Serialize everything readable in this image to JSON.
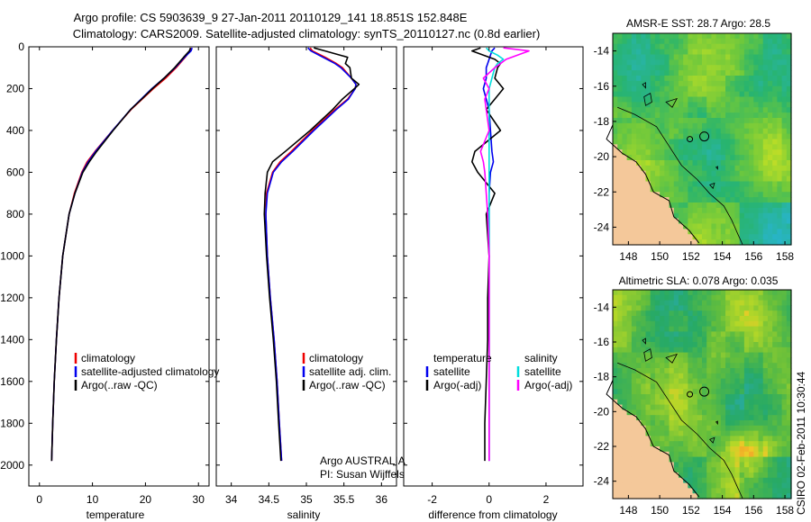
{
  "header": {
    "title_line1": "Argo profile: CS 5903639_9 27-Jan-2011 20110129_141 18.851S 152.848E",
    "title_line2": "Climatology: CARS2009. Satellite-adjusted climatology: synTS_20110127.nc (0.8d earlier)"
  },
  "colors": {
    "climatology": "#ee0000",
    "satellite": "#0000ee",
    "argo": "#000000",
    "diff_temperature": "#000000",
    "diff_salinity": "#ff00ff",
    "sat_salinity": "#00dddd"
  },
  "chart_data": [
    {
      "type": "line",
      "name": "temperature",
      "xlabel": "temperature",
      "xlim": [
        -2,
        32
      ],
      "ylim": [
        2100,
        0
      ],
      "xticks": [
        0,
        10,
        20,
        30
      ],
      "yticks": [
        0,
        200,
        400,
        600,
        800,
        1000,
        1200,
        1400,
        1600,
        1800,
        2000
      ],
      "legend": [
        "climatology",
        "satellite-adjusted climatology",
        "Argo(..raw -QC)"
      ],
      "depth": [
        5,
        20,
        50,
        100,
        150,
        200,
        250,
        300,
        400,
        500,
        550,
        600,
        700,
        800,
        1000,
        1200,
        1400,
        1600,
        1800,
        1980
      ],
      "series": [
        {
          "name": "climatology",
          "values": [
            28.6,
            28.4,
            27.5,
            25.8,
            23.8,
            21.5,
            19.4,
            17.3,
            13.8,
            10.5,
            9.0,
            8.0,
            6.6,
            5.6,
            4.4,
            3.7,
            3.2,
            2.8,
            2.5,
            2.3
          ]
        },
        {
          "name": "satellite-adjusted climatology",
          "values": [
            28.8,
            28.6,
            27.4,
            25.6,
            23.5,
            21.2,
            19.2,
            17.2,
            13.8,
            10.6,
            9.2,
            8.1,
            6.7,
            5.6,
            4.4,
            3.7,
            3.2,
            2.8,
            2.5,
            2.3
          ]
        },
        {
          "name": "Argo(..raw -QC)",
          "values": [
            28.5,
            28.3,
            27.2,
            25.5,
            23.5,
            21.3,
            19.3,
            17.2,
            13.9,
            10.8,
            9.4,
            8.2,
            6.7,
            5.6,
            4.4,
            3.7,
            3.2,
            2.8,
            2.5,
            2.3
          ]
        }
      ]
    },
    {
      "type": "line",
      "name": "salinity",
      "xlabel": "salinity",
      "xlim": [
        33.8,
        36.2
      ],
      "ylim": [
        2100,
        0
      ],
      "xticks": [
        34,
        34.5,
        35,
        35.5,
        36
      ],
      "legend": [
        "climatology",
        "satellite adj. clim.",
        "Argo(..raw -QC)"
      ],
      "depth": [
        5,
        20,
        50,
        80,
        100,
        150,
        180,
        200,
        250,
        300,
        400,
        500,
        550,
        600,
        700,
        800,
        1000,
        1200,
        1400,
        1600,
        1800,
        1980
      ],
      "series": [
        {
          "name": "climatology",
          "values": [
            35.05,
            35.08,
            35.25,
            35.4,
            35.48,
            35.6,
            35.66,
            35.65,
            35.55,
            35.38,
            35.08,
            34.8,
            34.65,
            34.55,
            34.47,
            34.46,
            34.48,
            34.52,
            34.57,
            34.61,
            34.64,
            34.67
          ]
        },
        {
          "name": "satellite adj. clim.",
          "values": [
            35.02,
            35.06,
            35.22,
            35.38,
            35.46,
            35.6,
            35.66,
            35.65,
            35.56,
            35.4,
            35.1,
            34.82,
            34.67,
            34.56,
            34.48,
            34.46,
            34.48,
            34.52,
            34.57,
            34.61,
            34.64,
            34.67
          ]
        },
        {
          "name": "Argo(..raw -QC)",
          "values": [
            35.1,
            35.25,
            35.55,
            35.52,
            35.58,
            35.6,
            35.7,
            35.64,
            35.48,
            35.35,
            35.05,
            34.72,
            34.55,
            34.48,
            34.45,
            34.44,
            34.47,
            34.51,
            34.56,
            34.6,
            34.63,
            34.66
          ]
        }
      ]
    },
    {
      "type": "line",
      "name": "difference from climatology",
      "xlabel": "difference from climatology",
      "xlim": [
        -3,
        3.3
      ],
      "ylim": [
        2100,
        0
      ],
      "xticks": [
        -2,
        0,
        2
      ],
      "legend_temperature_title": "temperature",
      "legend_temperature": [
        "satellite",
        "Argo(-adj)"
      ],
      "legend_salinity_title": "salinity",
      "legend_salinity": [
        "satellite",
        "Argo(-adj)"
      ],
      "depth": [
        5,
        20,
        40,
        60,
        80,
        100,
        150,
        200,
        250,
        300,
        400,
        500,
        550,
        600,
        700,
        800,
        1000,
        1200,
        1400,
        1600,
        1800,
        1980
      ],
      "series": [
        {
          "name": "temperature satellite",
          "values": [
            0.2,
            0.1,
            0.05,
            0.0,
            -0.05,
            -0.1,
            -0.1,
            -0.2,
            -0.1,
            0.0,
            0.05,
            0.1,
            0.15,
            0.05,
            0.0,
            0.0,
            0.0,
            0.0,
            0.0,
            0.0,
            0.0,
            0.0
          ]
        },
        {
          "name": "temperature Argo(-adj)",
          "values": [
            -0.3,
            -0.6,
            -0.2,
            0.2,
            0.4,
            0.3,
            0.2,
            0.5,
            0.2,
            -0.1,
            0.4,
            -0.5,
            -0.6,
            -0.4,
            0.2,
            -0.1,
            0.0,
            -0.05,
            -0.05,
            -0.1,
            -0.15,
            -0.15
          ]
        },
        {
          "name": "salinity satellite",
          "values": [
            -0.1,
            0.0,
            0.3,
            0.5,
            0.3,
            0.2,
            0.1,
            0.0,
            0.0,
            0.0,
            0.0,
            0.0,
            0.0,
            0.0,
            0.0,
            0.0,
            0.0,
            0.0,
            0.0,
            0.0,
            0.0,
            0.0
          ]
        },
        {
          "name": "salinity Argo(-adj)",
          "values": [
            0.5,
            1.4,
            1.0,
            0.6,
            0.4,
            0.2,
            -0.2,
            0.0,
            -0.15,
            -0.1,
            0.0,
            -0.3,
            -0.2,
            -0.15,
            -0.1,
            -0.05,
            0.0,
            0.0,
            0.0,
            0.0,
            0.0,
            0.0
          ]
        }
      ]
    },
    {
      "type": "heatmap",
      "name": "sst_map",
      "title": "AMSR-E SST: 28.7 Argo: 28.5",
      "xlim": [
        147,
        158.4
      ],
      "ylim": [
        -25,
        -13
      ],
      "xticks": [
        148,
        150,
        152,
        154,
        156,
        158
      ],
      "yticks": [
        -14,
        -16,
        -18,
        -20,
        -22,
        -24
      ],
      "argo_position": {
        "lon": 152.848,
        "lat": -18.851
      }
    },
    {
      "type": "heatmap",
      "name": "sla_map",
      "title": "Altimetric SLA: 0.078 Argo: 0.035",
      "xlim": [
        147,
        158.4
      ],
      "ylim": [
        -25,
        -13
      ],
      "xticks": [
        148,
        150,
        152,
        154,
        156,
        158
      ],
      "yticks": [
        -14,
        -16,
        -18,
        -20,
        -22,
        -24
      ],
      "argo_position": {
        "lon": 152.848,
        "lat": -18.851
      }
    }
  ],
  "footer": {
    "credit_line1": "Argo AUSTRALIA",
    "credit_line2": "PI: Susan Wijffels",
    "timestamp": "CSIRO 02-Feb-2011 10:30:44"
  }
}
